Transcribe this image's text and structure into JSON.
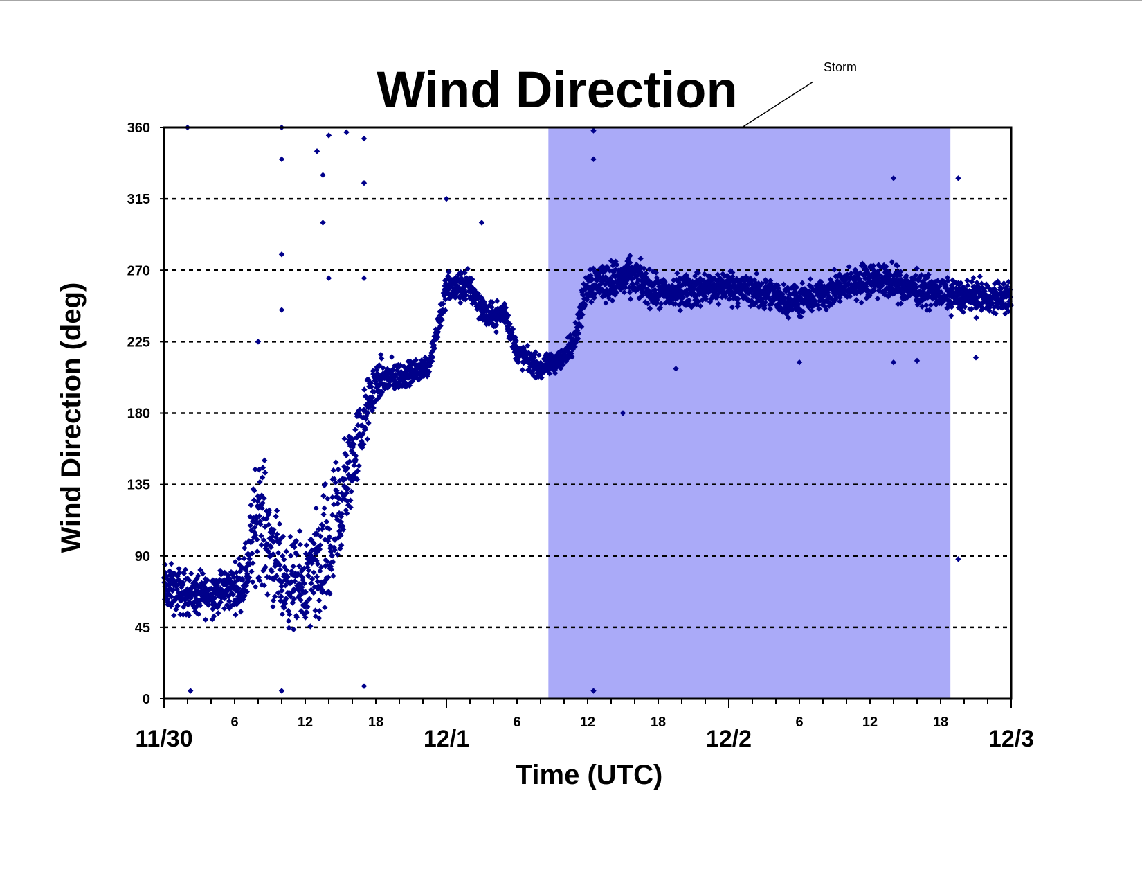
{
  "chart_data": {
    "type": "scatter",
    "title": "Wind Direction",
    "xlabel": "Time (UTC)",
    "ylabel": "Wind Direction (deg)",
    "ylim": [
      0,
      360
    ],
    "yticks": [
      0,
      45,
      90,
      135,
      180,
      225,
      270,
      315,
      360
    ],
    "ytick_labels": [
      "0",
      "45",
      "90",
      "135",
      "180",
      "225",
      "270",
      "315",
      "360"
    ],
    "xlim": [
      "11/30 00:00",
      "12/3 00:00"
    ],
    "x_hour_ticks": [
      {
        "hour": 6,
        "label": "6"
      },
      {
        "hour": 12,
        "label": "12"
      },
      {
        "hour": 18,
        "label": "18"
      },
      {
        "hour": 30,
        "label": "6"
      },
      {
        "hour": 36,
        "label": "12"
      },
      {
        "hour": 42,
        "label": "18"
      },
      {
        "hour": 54,
        "label": "6"
      },
      {
        "hour": 60,
        "label": "12"
      },
      {
        "hour": 66,
        "label": "18"
      }
    ],
    "x_minor_tick_step_hours": 2,
    "x_date_labels": [
      {
        "hour": 0,
        "label": "11/30"
      },
      {
        "hour": 24,
        "label": "12/1"
      },
      {
        "hour": 48,
        "label": "12/2"
      },
      {
        "hour": 72,
        "label": "12/3"
      }
    ],
    "grid": {
      "horizontal_dashed": true,
      "vertical": false
    },
    "shaded_region": {
      "label": "Storm",
      "start": "12/1 08:40",
      "end": "12/2 18:50",
      "color": "#aaaaf8"
    },
    "series": [
      {
        "marker": "diamond",
        "color": "#00008b",
        "trend": [
          {
            "t": "11/30 00:00",
            "dir": 70,
            "spread": 22
          },
          {
            "t": "11/30 03:00",
            "dir": 65,
            "spread": 20
          },
          {
            "t": "11/30 06:00",
            "dir": 70,
            "spread": 20
          },
          {
            "t": "11/30 07:00",
            "dir": 80,
            "spread": 30
          },
          {
            "t": "11/30 08:00",
            "dir": 120,
            "spread": 60
          },
          {
            "t": "11/30 10:00",
            "dir": 75,
            "spread": 40
          },
          {
            "t": "11/30 12:00",
            "dir": 70,
            "spread": 40
          },
          {
            "t": "11/30 14:00",
            "dir": 90,
            "spread": 70
          },
          {
            "t": "11/30 16:00",
            "dir": 150,
            "spread": 40
          },
          {
            "t": "11/30 18:00",
            "dir": 200,
            "spread": 20
          },
          {
            "t": "11/30 21:00",
            "dir": 205,
            "spread": 10
          },
          {
            "t": "11/30 22:30",
            "dir": 210,
            "spread": 10
          },
          {
            "t": "12/1 00:00",
            "dir": 258,
            "spread": 15
          },
          {
            "t": "12/1 02:00",
            "dir": 260,
            "spread": 15
          },
          {
            "t": "12/1 03:30",
            "dir": 240,
            "spread": 12
          },
          {
            "t": "12/1 05:00",
            "dir": 243,
            "spread": 12
          },
          {
            "t": "12/1 06:00",
            "dir": 218,
            "spread": 12
          },
          {
            "t": "12/1 08:00",
            "dir": 208,
            "spread": 10
          },
          {
            "t": "12/1 10:00",
            "dir": 215,
            "spread": 10
          },
          {
            "t": "12/1 11:00",
            "dir": 230,
            "spread": 12
          },
          {
            "t": "12/1 12:00",
            "dir": 262,
            "spread": 18
          },
          {
            "t": "12/1 16:00",
            "dir": 265,
            "spread": 18
          },
          {
            "t": "12/1 18:00",
            "dir": 255,
            "spread": 15
          },
          {
            "t": "12/2 00:00",
            "dir": 260,
            "spread": 15
          },
          {
            "t": "12/2 06:00",
            "dir": 250,
            "spread": 14
          },
          {
            "t": "12/2 12:00",
            "dir": 265,
            "spread": 16
          },
          {
            "t": "12/2 18:00",
            "dir": 255,
            "spread": 14
          },
          {
            "t": "12/3 00:00",
            "dir": 252,
            "spread": 15
          }
        ],
        "outliers": [
          {
            "t": "11/30 02:00",
            "dir": 360
          },
          {
            "t": "11/30 02:15",
            "dir": 5
          },
          {
            "t": "11/30 10:00",
            "dir": 360
          },
          {
            "t": "11/30 10:00",
            "dir": 340
          },
          {
            "t": "11/30 10:00",
            "dir": 280
          },
          {
            "t": "11/30 10:00",
            "dir": 245
          },
          {
            "t": "11/30 10:00",
            "dir": 5
          },
          {
            "t": "11/30 13:00",
            "dir": 345
          },
          {
            "t": "11/30 13:30",
            "dir": 330
          },
          {
            "t": "11/30 13:30",
            "dir": 300
          },
          {
            "t": "11/30 14:00",
            "dir": 355
          },
          {
            "t": "11/30 14:00",
            "dir": 265
          },
          {
            "t": "11/30 15:30",
            "dir": 357
          },
          {
            "t": "11/30 17:00",
            "dir": 353
          },
          {
            "t": "11/30 17:00",
            "dir": 325
          },
          {
            "t": "11/30 17:00",
            "dir": 265
          },
          {
            "t": "11/30 17:00",
            "dir": 8
          },
          {
            "t": "11/30 08:00",
            "dir": 225
          },
          {
            "t": "12/1 00:00",
            "dir": 315
          },
          {
            "t": "12/1 03:00",
            "dir": 300
          },
          {
            "t": "12/1 12:30",
            "dir": 358
          },
          {
            "t": "12/1 12:30",
            "dir": 340
          },
          {
            "t": "12/1 12:30",
            "dir": 5
          },
          {
            "t": "12/1 15:00",
            "dir": 180
          },
          {
            "t": "12/1 19:30",
            "dir": 208
          },
          {
            "t": "12/2 06:00",
            "dir": 212
          },
          {
            "t": "12/2 14:00",
            "dir": 328
          },
          {
            "t": "12/2 14:00",
            "dir": 212
          },
          {
            "t": "12/2 16:00",
            "dir": 213
          },
          {
            "t": "12/2 19:30",
            "dir": 328
          },
          {
            "t": "12/2 19:30",
            "dir": 88
          },
          {
            "t": "12/2 21:00",
            "dir": 215
          }
        ]
      }
    ]
  }
}
